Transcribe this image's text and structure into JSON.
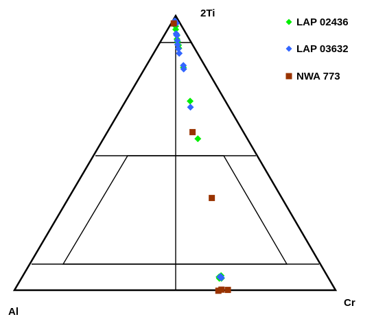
{
  "chart_data": {
    "type": "scatter",
    "subtype": "ternary",
    "corners": {
      "top": "2Ti",
      "left": "Al",
      "right": "Cr"
    },
    "legend_position": "top-right",
    "series": [
      {
        "name": "LAP 02436",
        "marker": "diamond",
        "color": "#00ee00",
        "points": [
          [
            0.962,
            0.0
          ],
          [
            0.95,
            0.0
          ],
          [
            0.93,
            0.008
          ],
          [
            0.915,
            0.008
          ],
          [
            0.905,
            0.012
          ],
          [
            0.893,
            0.018
          ],
          [
            0.882,
            0.02
          ],
          [
            0.812,
            0.048
          ],
          [
            0.689,
            0.09
          ],
          [
            0.552,
            0.138
          ],
          [
            0.051,
            0.278
          ],
          [
            0.043,
            0.272
          ],
          [
            0.043,
            0.285
          ],
          [
            0.048,
            0.27
          ],
          [
            0.053,
            0.283
          ]
        ]
      },
      {
        "name": "LAP 03632",
        "marker": "diamond",
        "color": "#3366ff",
        "points": [
          [
            0.982,
            -0.005
          ],
          [
            0.978,
            -0.003
          ],
          [
            0.973,
            0.005
          ],
          [
            0.97,
            0.0
          ],
          [
            0.935,
            0.003
          ],
          [
            0.93,
            0.005
          ],
          [
            0.928,
            0.008
          ],
          [
            0.91,
            0.01
          ],
          [
            0.895,
            0.012
          ],
          [
            0.88,
            0.017
          ],
          [
            0.863,
            0.022
          ],
          [
            0.819,
            0.048
          ],
          [
            0.806,
            0.05
          ],
          [
            0.667,
            0.092
          ],
          [
            0.05,
            0.28
          ],
          [
            0.048,
            0.275
          ],
          [
            0.045,
            0.285
          ]
        ]
      },
      {
        "name": "NWA 773",
        "marker": "square",
        "color": "#993300",
        "points": [
          [
            0.972,
            -0.012
          ],
          [
            0.576,
            0.105
          ],
          [
            0.336,
            0.225
          ],
          [
            -0.002,
            0.266
          ],
          [
            0.002,
            0.285
          ],
          [
            0.001,
            0.325
          ]
        ]
      }
    ]
  }
}
